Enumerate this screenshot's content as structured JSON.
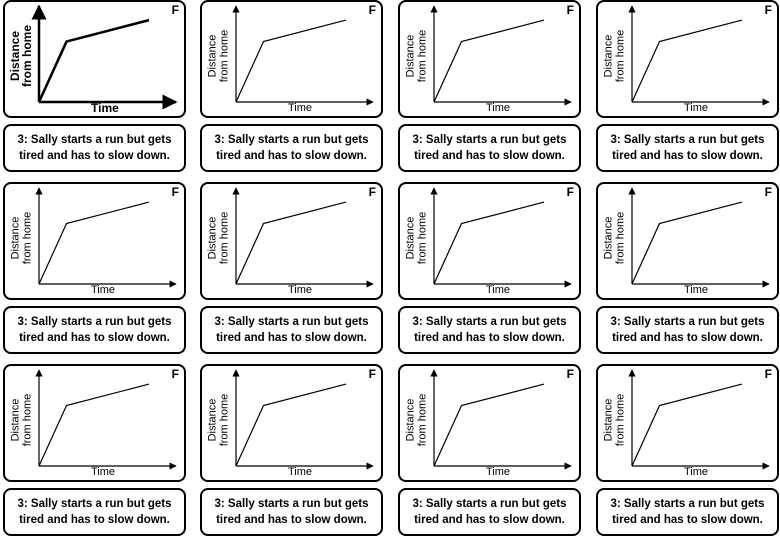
{
  "card": {
    "letter": "F",
    "y_label_line1": "Distance",
    "y_label_line2": "from home",
    "x_label": "Time",
    "description": "3: Sally starts a run but gets tired and has to slow down."
  },
  "chart_data": {
    "type": "line",
    "title": "",
    "xlabel": "Time",
    "ylabel": "Distance from home",
    "series": [
      {
        "values": [
          [
            0,
            0
          ],
          [
            1,
            3.1
          ],
          [
            4,
            4.2
          ]
        ]
      }
    ],
    "grid": false,
    "legend": "none"
  },
  "grid": {
    "rows": 3,
    "columns": 4,
    "total_cards": 12
  }
}
